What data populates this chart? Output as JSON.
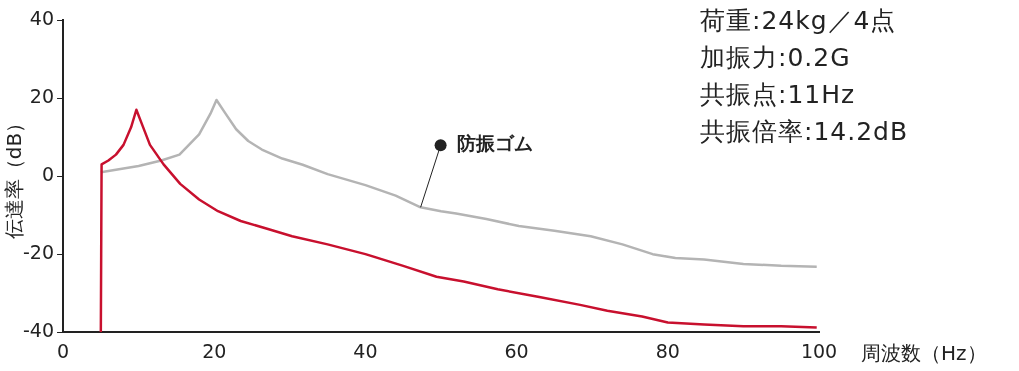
{
  "chart_data": {
    "type": "line",
    "xlabel": "周波数（Hz）",
    "ylabel": "伝達率（dB）",
    "annotations": [
      "荷重:24kg／4点",
      "加振力:0.2G",
      "共振点:11Hz",
      "共振倍率:14.2dB"
    ],
    "xlim": [
      0,
      100
    ],
    "xticks": [
      0,
      20,
      40,
      60,
      80,
      100
    ],
    "ylim": [
      -40,
      40
    ],
    "yticks": [
      -40,
      -20,
      0,
      20,
      40
    ],
    "grid": false,
    "legend": false,
    "marker": "none",
    "line_style": "solid",
    "series": [
      {
        "color": "#c8102e",
        "x": [
          5,
          5.1,
          6,
          7,
          8,
          9,
          9.7,
          10.5,
          11.5,
          13.3,
          15.5,
          18,
          20.5,
          23.5,
          27,
          30.3,
          35,
          40,
          45,
          49.4,
          53,
          57.5,
          63,
          68.4,
          72,
          76.6,
          80,
          84.8,
          90,
          95,
          99.7
        ],
        "values": [
          -40,
          3,
          4,
          5.5,
          8,
          12.5,
          17,
          13,
          8,
          3,
          -2,
          -6,
          -9,
          -11.5,
          -13.5,
          -15.4,
          -17.5,
          -20,
          -23,
          -25.8,
          -27,
          -29,
          -31,
          -33,
          -34.5,
          -36,
          -37.5,
          -38,
          -38.5,
          -38.5,
          -38.8
        ]
      },
      {
        "name": "防振ゴム",
        "color": "#b4b4b4",
        "x": [
          5,
          7,
          10,
          13,
          15.4,
          18,
          19.5,
          20.3,
          21.5,
          22.9,
          24.5,
          26.3,
          29,
          31.7,
          35,
          40,
          44,
          47.3,
          50,
          52,
          56,
          60.3,
          65,
          69.8,
          74,
          78,
          81,
          84.8,
          90,
          95,
          99.7
        ],
        "values": [
          1,
          1.6,
          2.6,
          4,
          5.5,
          10.7,
          16,
          19.5,
          16,
          12,
          9,
          6.8,
          4.5,
          2.9,
          0.5,
          -2.3,
          -5,
          -8,
          -9,
          -9.6,
          -11,
          -12.8,
          -14,
          -15.4,
          -17.5,
          -20,
          -21,
          -21.4,
          -22.5,
          -23,
          -23.2
        ]
      }
    ]
  }
}
